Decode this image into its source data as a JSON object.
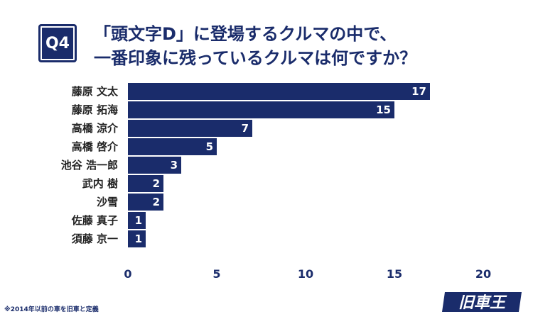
{
  "badge": "Q4",
  "title_lines": [
    "「頭文字D」に登場するクルマの中で、",
    "一番印象に残っているクルマは何ですか？"
  ],
  "footnote": "※2014年以前の車を旧車と定義",
  "logo_text": "旧車王",
  "colors": {
    "bar": "#1a2c6b",
    "brand": "#1a2c6b",
    "text": "#222222",
    "background": "#ffffff"
  },
  "chart_data": {
    "type": "bar",
    "orientation": "horizontal",
    "categories": [
      "藤原 文太",
      "藤原 拓海",
      "高橋 涼介",
      "高橋 啓介",
      "池谷 浩一郎",
      "武内 樹",
      "沙雪",
      "佐藤 真子",
      "須藤 京一"
    ],
    "values": [
      17,
      15,
      7,
      5,
      3,
      2,
      2,
      1,
      1
    ],
    "xlim": [
      0,
      20
    ],
    "xticks": [
      0,
      5,
      10,
      15,
      20
    ],
    "grid": false,
    "data_labels": true
  }
}
